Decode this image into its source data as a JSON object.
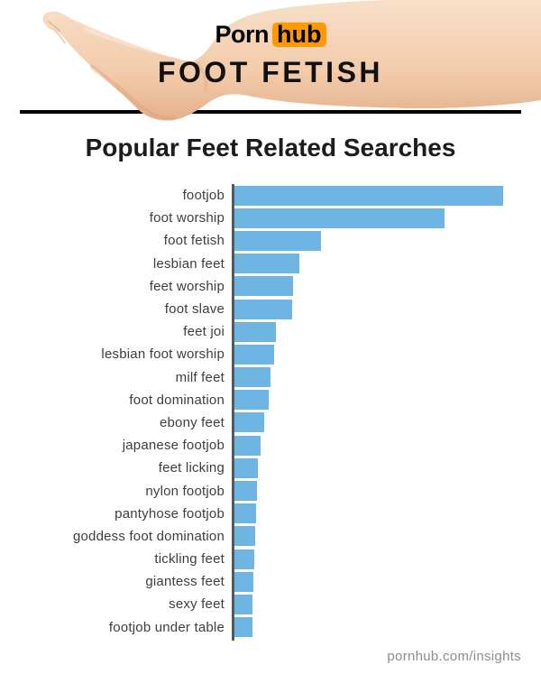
{
  "header": {
    "logo": {
      "part1": "Porn",
      "part2": "hub"
    },
    "title": "FOOT FETISH"
  },
  "heading": "Popular Feet Related Searches",
  "footer": "pornhub.com/insights",
  "colors": {
    "bar": "#6FB5E3",
    "axis": "#58585A",
    "divider": "#000000",
    "logo_orange": "#FF9900",
    "footer_text": "#8E8E92",
    "skin_light": "#F8DFC9",
    "skin_dark": "#E5B18B"
  },
  "chart_data": {
    "type": "bar",
    "orientation": "horizontal",
    "title": "Popular Feet Related Searches",
    "categories": [
      "footjob",
      "foot worship",
      "foot fetish",
      "lesbian feet",
      "feet worship",
      "foot slave",
      "feet joi",
      "lesbian foot worship",
      "milf feet",
      "foot domination",
      "ebony feet",
      "japanese footjob",
      "feet licking",
      "nylon footjob",
      "pantyhose footjob",
      "goddess foot domination",
      "tickling feet",
      "giantess feet",
      "sexy feet",
      "footjob under table"
    ],
    "values": [
      298,
      233,
      96,
      72,
      65,
      64,
      46,
      44,
      40,
      38,
      33,
      29,
      26,
      25,
      24,
      23,
      22,
      21,
      20,
      20
    ],
    "value_unit": "relative search volume (bar length, px)",
    "bar_color": "#6FB5E3",
    "xlabel": "",
    "ylabel": "",
    "axes": "single left baseline, no ticks, no gridlines, no value labels",
    "legend": "none"
  }
}
